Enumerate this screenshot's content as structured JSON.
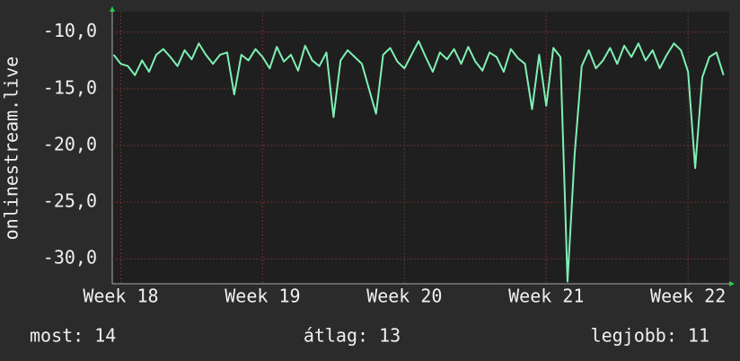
{
  "chart_data": {
    "type": "line",
    "y_label": "onlinestream.live",
    "x": [
      17.95,
      18.0,
      18.05,
      18.1,
      18.15,
      18.2,
      18.25,
      18.3,
      18.35,
      18.4,
      18.45,
      18.5,
      18.55,
      18.6,
      18.65,
      18.7,
      18.75,
      18.8,
      18.85,
      18.9,
      18.95,
      19.0,
      19.05,
      19.1,
      19.15,
      19.2,
      19.25,
      19.3,
      19.35,
      19.4,
      19.45,
      19.5,
      19.55,
      19.6,
      19.65,
      19.7,
      19.75,
      19.8,
      19.85,
      19.9,
      19.95,
      20.0,
      20.05,
      20.1,
      20.15,
      20.2,
      20.25,
      20.3,
      20.35,
      20.4,
      20.45,
      20.5,
      20.55,
      20.6,
      20.65,
      20.7,
      20.75,
      20.8,
      20.85,
      20.9,
      20.95,
      21.0,
      21.05,
      21.1,
      21.15,
      21.2,
      21.25,
      21.3,
      21.35,
      21.4,
      21.45,
      21.5,
      21.55,
      21.6,
      21.65,
      21.7,
      21.75,
      21.8,
      21.85,
      21.9,
      21.95,
      22.0,
      22.05,
      22.1,
      22.15,
      22.2,
      22.25
    ],
    "series": [
      {
        "color": "#7ff0b4",
        "values": [
          -12,
          -12.8,
          -13,
          -13.8,
          -12.5,
          -13.5,
          -12,
          -11.5,
          -12.2,
          -13,
          -11.6,
          -12.4,
          -11,
          -12,
          -12.8,
          -12,
          -11.8,
          -15.5,
          -12,
          -12.5,
          -11.5,
          -12.2,
          -13.2,
          -11.3,
          -12.6,
          -12,
          -13.4,
          -11.2,
          -12.5,
          -13,
          -11.8,
          -17.5,
          -12.5,
          -11.6,
          -12.2,
          -12.8,
          -15,
          -17.2,
          -12,
          -11.4,
          -12.6,
          -13.2,
          -12,
          -10.8,
          -12.2,
          -13.5,
          -11.8,
          -12.4,
          -11.5,
          -12.8,
          -11.3,
          -12.6,
          -13.4,
          -11.8,
          -12.2,
          -13.5,
          -11.5,
          -12.3,
          -12.8,
          -16.8,
          -12,
          -16.5,
          -11.4,
          -12.2,
          -32,
          -20.8,
          -13,
          -11.6,
          -13.2,
          -12.5,
          -11.4,
          -12.8,
          -11.2,
          -12.2,
          -11,
          -12.5,
          -11.6,
          -13.2,
          -12,
          -11,
          -11.6,
          -13.5,
          -22,
          -14,
          -12.2,
          -11.8,
          -13.8
        ]
      }
    ],
    "xlim": [
      17.94,
      22.29
    ],
    "xticks": [
      {
        "value": 18,
        "label": "Week 18"
      },
      {
        "value": 19,
        "label": "Week 19"
      },
      {
        "value": 20,
        "label": "Week 20"
      },
      {
        "value": 21,
        "label": "Week 21"
      },
      {
        "value": 22,
        "label": "Week 22"
      }
    ],
    "ylim": [
      -32.2,
      -8.2
    ],
    "yticks": [
      {
        "value": -30,
        "label": "-30,0"
      },
      {
        "value": -25,
        "label": "-25,0"
      },
      {
        "value": -20,
        "label": "-20,0"
      },
      {
        "value": -15,
        "label": "-15,0"
      },
      {
        "value": -10,
        "label": "-10,0"
      }
    ],
    "grid": true
  },
  "footer": [
    "most: 14",
    "átlag: 13",
    "legjobb: 11"
  ]
}
